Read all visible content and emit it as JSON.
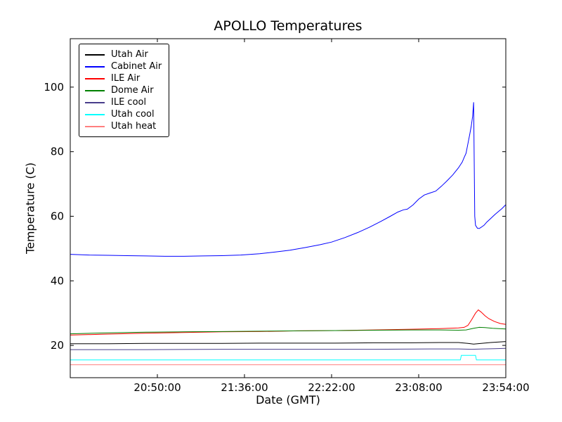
{
  "chart_data": {
    "type": "line",
    "title": "APOLLO Temperatures",
    "xlabel": "Date (GMT)",
    "ylabel": "Temperature (C)",
    "grid": false,
    "legend_position": "upper left",
    "x_unit": "minutes after 20:04:00 GMT",
    "xlim": [
      0,
      230
    ],
    "ylim": [
      10,
      115
    ],
    "x_tick_positions": [
      46,
      92,
      138,
      184,
      230
    ],
    "x_tick_labels": [
      "20:50:00",
      "21:36:00",
      "22:22:00",
      "23:08:00",
      "23:54:00"
    ],
    "y_tick_values": [
      20,
      40,
      60,
      80,
      100
    ],
    "y_tick_labels": [
      "20",
      "40",
      "60",
      "80",
      "100"
    ],
    "series": [
      {
        "name": "Utah Air",
        "color": "#000000",
        "points": [
          [
            0,
            20.5
          ],
          [
            20,
            20.5
          ],
          [
            40,
            20.6
          ],
          [
            60,
            20.6
          ],
          [
            80,
            20.6
          ],
          [
            100,
            20.7
          ],
          [
            120,
            20.7
          ],
          [
            140,
            20.7
          ],
          [
            160,
            20.8
          ],
          [
            180,
            20.8
          ],
          [
            195,
            20.9
          ],
          [
            205,
            20.9
          ],
          [
            210,
            20.6
          ],
          [
            213,
            20.4
          ],
          [
            217,
            20.6
          ],
          [
            222,
            20.9
          ],
          [
            230,
            21.2
          ]
        ]
      },
      {
        "name": "Cabinet Air",
        "color": "#0000ff",
        "points": [
          [
            0,
            48.2
          ],
          [
            10,
            48.0
          ],
          [
            20,
            47.9
          ],
          [
            30,
            47.8
          ],
          [
            40,
            47.7
          ],
          [
            50,
            47.6
          ],
          [
            60,
            47.6
          ],
          [
            70,
            47.7
          ],
          [
            80,
            47.8
          ],
          [
            90,
            48.0
          ],
          [
            100,
            48.4
          ],
          [
            108,
            48.9
          ],
          [
            116,
            49.5
          ],
          [
            124,
            50.3
          ],
          [
            132,
            51.2
          ],
          [
            138,
            52.0
          ],
          [
            145,
            53.4
          ],
          [
            152,
            55.0
          ],
          [
            158,
            56.6
          ],
          [
            164,
            58.4
          ],
          [
            169,
            60.0
          ],
          [
            173,
            61.3
          ],
          [
            176,
            62.0
          ],
          [
            178,
            62.2
          ],
          [
            181,
            63.5
          ],
          [
            184,
            65.3
          ],
          [
            187,
            66.6
          ],
          [
            190,
            67.2
          ],
          [
            193,
            67.8
          ],
          [
            196,
            69.3
          ],
          [
            199,
            71.0
          ],
          [
            202,
            72.8
          ],
          [
            205,
            75.0
          ],
          [
            207,
            76.8
          ],
          [
            208,
            78.2
          ],
          [
            209,
            79.5
          ],
          [
            210,
            82.5
          ],
          [
            211,
            85.5
          ],
          [
            211.8,
            88.0
          ],
          [
            212.5,
            91.0
          ],
          [
            213,
            95.3
          ],
          [
            213.6,
            60.0
          ],
          [
            214,
            57.2
          ],
          [
            215,
            56.3
          ],
          [
            216,
            56.2
          ],
          [
            217,
            56.6
          ],
          [
            218.5,
            57.2
          ],
          [
            220,
            58.2
          ],
          [
            222,
            59.3
          ],
          [
            224,
            60.4
          ],
          [
            226,
            61.4
          ],
          [
            228,
            62.4
          ],
          [
            230,
            63.6
          ]
        ]
      },
      {
        "name": "ILE Air",
        "color": "#ff0000",
        "points": [
          [
            0,
            23.2
          ],
          [
            20,
            23.5
          ],
          [
            40,
            23.8
          ],
          [
            60,
            24.0
          ],
          [
            80,
            24.2
          ],
          [
            100,
            24.3
          ],
          [
            120,
            24.5
          ],
          [
            140,
            24.6
          ],
          [
            160,
            24.8
          ],
          [
            180,
            25.0
          ],
          [
            195,
            25.2
          ],
          [
            205,
            25.4
          ],
          [
            208,
            25.6
          ],
          [
            210,
            26.2
          ],
          [
            212,
            28.0
          ],
          [
            214,
            30.0
          ],
          [
            215.5,
            31.0
          ],
          [
            217,
            30.3
          ],
          [
            219,
            29.2
          ],
          [
            221,
            28.3
          ],
          [
            224,
            27.4
          ],
          [
            227,
            26.8
          ],
          [
            230,
            26.5
          ]
        ]
      },
      {
        "name": "Dome Air",
        "color": "#008000",
        "points": [
          [
            0,
            23.6
          ],
          [
            20,
            23.9
          ],
          [
            40,
            24.1
          ],
          [
            60,
            24.2
          ],
          [
            80,
            24.3
          ],
          [
            100,
            24.4
          ],
          [
            120,
            24.5
          ],
          [
            140,
            24.6
          ],
          [
            160,
            24.7
          ],
          [
            180,
            24.8
          ],
          [
            195,
            24.8
          ],
          [
            205,
            24.7
          ],
          [
            209,
            24.8
          ],
          [
            213,
            25.3
          ],
          [
            216,
            25.6
          ],
          [
            219,
            25.5
          ],
          [
            223,
            25.3
          ],
          [
            230,
            25.1
          ]
        ]
      },
      {
        "name": "ILE cool",
        "color": "#483d8b",
        "points": [
          [
            0,
            18.7
          ],
          [
            40,
            18.7
          ],
          [
            80,
            18.8
          ],
          [
            120,
            18.8
          ],
          [
            160,
            18.8
          ],
          [
            190,
            18.9
          ],
          [
            205,
            18.9
          ],
          [
            212,
            18.8
          ],
          [
            218,
            18.9
          ],
          [
            224,
            19.0
          ],
          [
            230,
            19.1
          ]
        ]
      },
      {
        "name": "Utah cool",
        "color": "#00ffff",
        "points": [
          [
            0,
            15.5
          ],
          [
            50,
            15.5
          ],
          [
            100,
            15.5
          ],
          [
            150,
            15.5
          ],
          [
            200,
            15.5
          ],
          [
            206,
            15.5
          ],
          [
            206.5,
            16.9
          ],
          [
            214,
            16.9
          ],
          [
            214.5,
            15.5
          ],
          [
            230,
            15.5
          ]
        ]
      },
      {
        "name": "Utah heat",
        "color": "#ff7f7f",
        "points": [
          [
            0,
            14.0
          ],
          [
            60,
            14.0
          ],
          [
            120,
            14.0
          ],
          [
            180,
            14.0
          ],
          [
            230,
            14.0
          ]
        ]
      }
    ]
  }
}
